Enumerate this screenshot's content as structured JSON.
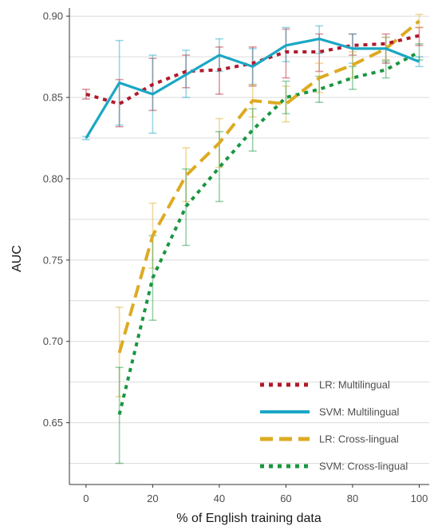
{
  "chart_data": {
    "type": "line",
    "xlabel": "% of English training data",
    "ylabel": "AUC",
    "xlim": [
      -5,
      103
    ],
    "ylim": [
      0.612,
      0.905
    ],
    "xticks": [
      0,
      20,
      40,
      60,
      80,
      100
    ],
    "xtick_labels": [
      "0",
      "20",
      "40",
      "60",
      "80",
      "100"
    ],
    "yticks": [
      0.65,
      0.7,
      0.75,
      0.8,
      0.85,
      0.9
    ],
    "ytick_labels": [
      "0.65",
      "0.70",
      "0.75",
      "0.80",
      "0.85",
      "0.90"
    ],
    "grid": true,
    "legend_position": "bottom-right",
    "series": [
      {
        "name": "LR: Multilingual",
        "color": "#b2182b",
        "style": "dotted",
        "x": [
          0,
          10,
          20,
          30,
          40,
          50,
          60,
          70,
          80,
          90,
          100
        ],
        "y": [
          0.852,
          0.846,
          0.858,
          0.866,
          0.867,
          0.871,
          0.878,
          0.878,
          0.882,
          0.883,
          0.888
        ],
        "err_low": [
          0.849,
          0.832,
          0.842,
          0.856,
          0.852,
          0.857,
          0.862,
          0.866,
          0.876,
          0.871,
          0.882
        ],
        "err_high": [
          0.855,
          0.861,
          0.874,
          0.876,
          0.881,
          0.881,
          0.892,
          0.889,
          0.889,
          0.889,
          0.893
        ]
      },
      {
        "name": "SVM: Multilingual",
        "color": "#1aa7c4",
        "style": "solid",
        "x": [
          0,
          10,
          20,
          30,
          40,
          50,
          60,
          70,
          80,
          90,
          100
        ],
        "y": [
          0.825,
          0.859,
          0.852,
          0.864,
          0.876,
          0.869,
          0.882,
          0.886,
          0.88,
          0.88,
          0.872
        ],
        "err_low": [
          0.824,
          0.833,
          0.828,
          0.85,
          0.866,
          0.858,
          0.872,
          0.877,
          0.871,
          0.873,
          0.869
        ],
        "err_high": [
          0.826,
          0.885,
          0.876,
          0.879,
          0.886,
          0.88,
          0.893,
          0.894,
          0.889,
          0.887,
          0.875
        ]
      },
      {
        "name": "LR: Cross-lingual",
        "color": "#ddaa22",
        "style": "dashed",
        "x": [
          0,
          10,
          20,
          30,
          40,
          50,
          60,
          70,
          80,
          90,
          100
        ],
        "y": [
          null,
          0.693,
          0.765,
          0.802,
          0.822,
          0.848,
          0.846,
          0.862,
          0.87,
          0.88,
          0.897
        ],
        "err_low": [
          null,
          0.666,
          0.745,
          0.786,
          0.807,
          0.838,
          0.835,
          0.853,
          0.862,
          0.873,
          0.893
        ],
        "err_high": [
          null,
          0.721,
          0.785,
          0.819,
          0.837,
          0.858,
          0.857,
          0.871,
          0.878,
          0.887,
          0.901
        ]
      },
      {
        "name": "SVM: Cross-lingual",
        "color": "#1a9641",
        "style": "dotted",
        "x": [
          0,
          10,
          20,
          30,
          40,
          50,
          60,
          70,
          80,
          90,
          100
        ],
        "y": [
          null,
          0.655,
          0.739,
          0.783,
          0.807,
          0.83,
          0.85,
          0.855,
          0.862,
          0.867,
          0.878
        ],
        "err_low": [
          null,
          0.625,
          0.713,
          0.759,
          0.786,
          0.817,
          0.84,
          0.847,
          0.855,
          0.862,
          0.873
        ],
        "err_high": [
          null,
          0.684,
          0.765,
          0.806,
          0.829,
          0.843,
          0.86,
          0.863,
          0.869,
          0.872,
          0.883
        ]
      }
    ]
  }
}
